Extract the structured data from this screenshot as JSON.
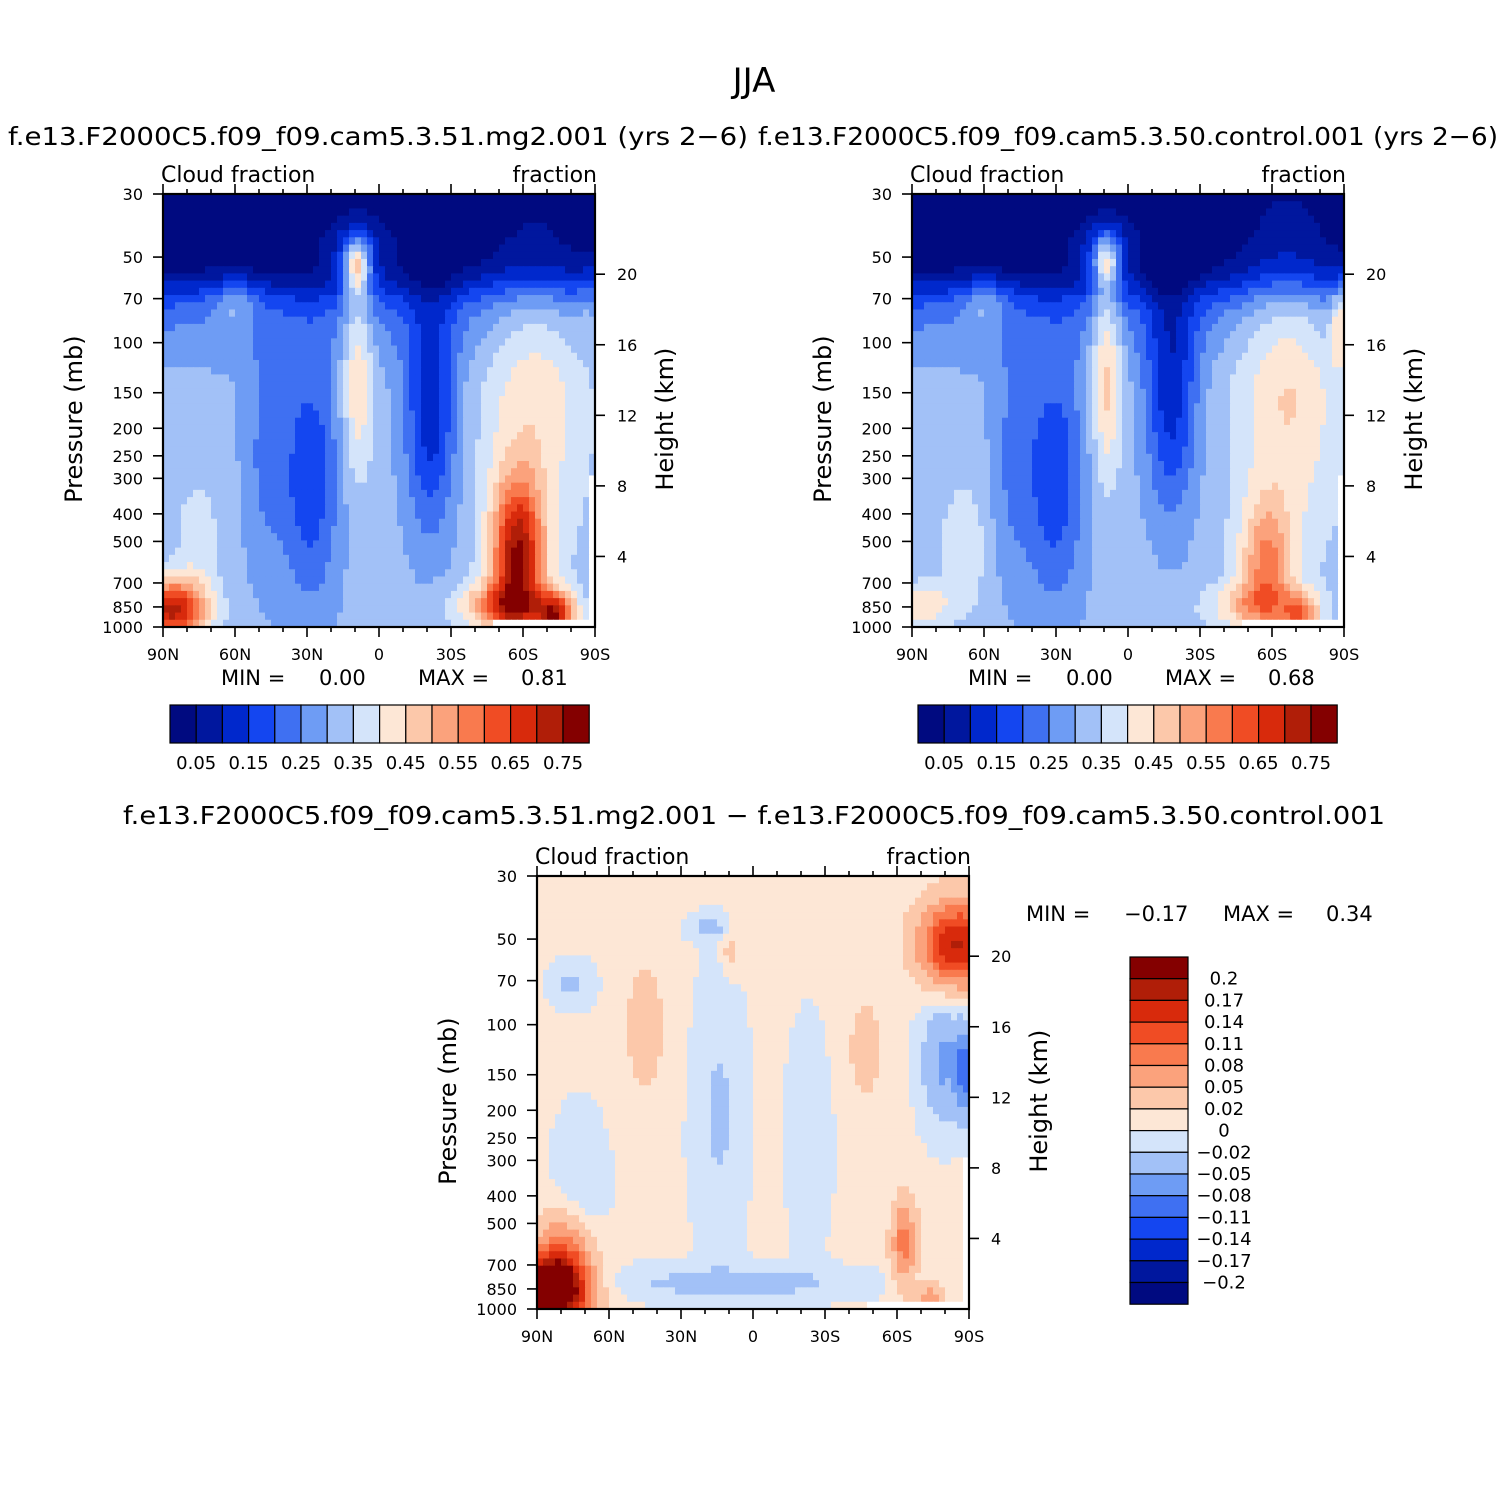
{
  "figure": {
    "title": "JJA",
    "diff_title": "f.e13.F2000C5.f09_f09.cam5.3.51.mg2.001 − f.e13.F2000C5.f09_f09.cam5.3.50.control.001"
  },
  "chart_data": [
    {
      "type": "heatmap",
      "panel": "test",
      "title": "f.e13.F2000C5.f09_f09.cam5.3.51.mg2.001  (yrs 2−6)",
      "left_label": "Cloud fraction",
      "right_label": "fraction",
      "xlabel": "",
      "ylabel": "Pressure (mb)",
      "y2label": "Height (km)",
      "x_ticks": [
        "90N",
        "60N",
        "30N",
        "0",
        "30S",
        "60S",
        "90S"
      ],
      "y_ticks": [
        "30",
        "50",
        "70",
        "100",
        "150",
        "200",
        "250",
        "300",
        "400",
        "500",
        "700",
        "850",
        "1000"
      ],
      "y2_ticks": [
        "20",
        "16",
        "12",
        "8",
        "4"
      ],
      "ylim": [
        1000,
        30
      ],
      "y_scale": "log",
      "min_label": "MIN =",
      "min": "0.00",
      "max_label": "MAX =",
      "max": "0.81",
      "levels": [
        0.05,
        0.1,
        0.15,
        0.2,
        0.25,
        0.3,
        0.35,
        0.4,
        0.45,
        0.5,
        0.55,
        0.6,
        0.65,
        0.7,
        0.75
      ],
      "colorbar_labels": [
        "0.05",
        "0.15",
        "0.25",
        "0.35",
        "0.45",
        "0.55",
        "0.65",
        "0.75"
      ],
      "colorbar_orientation": "horizontal"
    },
    {
      "type": "heatmap",
      "panel": "control",
      "title": "f.e13.F2000C5.f09_f09.cam5.3.50.control.001  (yrs 2−6)",
      "left_label": "Cloud fraction",
      "right_label": "fraction",
      "xlabel": "",
      "ylabel": "Pressure (mb)",
      "y2label": "Height (km)",
      "x_ticks": [
        "90N",
        "60N",
        "30N",
        "0",
        "30S",
        "60S",
        "90S"
      ],
      "y_ticks": [
        "30",
        "50",
        "70",
        "100",
        "150",
        "200",
        "250",
        "300",
        "400",
        "500",
        "700",
        "850",
        "1000"
      ],
      "y2_ticks": [
        "20",
        "16",
        "12",
        "8",
        "4"
      ],
      "ylim": [
        1000,
        30
      ],
      "y_scale": "log",
      "min_label": "MIN =",
      "min": "0.00",
      "max_label": "MAX =",
      "max": "0.68",
      "levels": [
        0.05,
        0.1,
        0.15,
        0.2,
        0.25,
        0.3,
        0.35,
        0.4,
        0.45,
        0.5,
        0.55,
        0.6,
        0.65,
        0.7,
        0.75
      ],
      "colorbar_labels": [
        "0.05",
        "0.15",
        "0.25",
        "0.35",
        "0.45",
        "0.55",
        "0.65",
        "0.75"
      ],
      "colorbar_orientation": "horizontal"
    },
    {
      "type": "heatmap",
      "panel": "difference",
      "title": "",
      "left_label": "Cloud fraction",
      "right_label": "fraction",
      "xlabel": "",
      "ylabel": "Pressure (mb)",
      "y2label": "Height (km)",
      "x_ticks": [
        "90N",
        "60N",
        "30N",
        "0",
        "30S",
        "60S",
        "90S"
      ],
      "y_ticks": [
        "30",
        "50",
        "70",
        "100",
        "150",
        "200",
        "250",
        "300",
        "400",
        "500",
        "700",
        "850",
        "1000"
      ],
      "y2_ticks": [
        "20",
        "16",
        "12",
        "8",
        "4"
      ],
      "ylim": [
        1000,
        30
      ],
      "y_scale": "log",
      "min_label": "MIN =",
      "min": "−0.17",
      "max_label": "MAX =",
      "max": "0.34",
      "levels": [
        0.2,
        0.17,
        0.14,
        0.11,
        0.08,
        0.05,
        0.02,
        0,
        -0.02,
        -0.05,
        -0.08,
        -0.11,
        -0.14,
        -0.17,
        -0.2
      ],
      "colorbar_labels": [
        "0.2",
        "0.17",
        "0.14",
        "0.11",
        "0.08",
        "0.05",
        "0.02",
        "0",
        "−0.02",
        "−0.05",
        "−0.08",
        "−0.11",
        "−0.14",
        "−0.17",
        "−0.2"
      ],
      "colorbar_orientation": "vertical"
    }
  ],
  "colors": {
    "seq": [
      "#000a80",
      "#00179e",
      "#0028cc",
      "#1446f0",
      "#3f70f2",
      "#6e9cf4",
      "#a2c1f7",
      "#d4e4fa",
      "#fde7d6",
      "#fcc8aa",
      "#fba27c",
      "#f97a4e",
      "#f04c24",
      "#d82a0c",
      "#b01e08",
      "#840000"
    ],
    "div": [
      "#840000",
      "#b01e08",
      "#d82a0c",
      "#f04c24",
      "#f97a4e",
      "#fba27c",
      "#fcc8aa",
      "#fde7d6",
      "#d4e4fa",
      "#a2c1f7",
      "#6e9cf4",
      "#3f70f2",
      "#1446f0",
      "#0028cc",
      "#00179e",
      "#000a80"
    ]
  }
}
